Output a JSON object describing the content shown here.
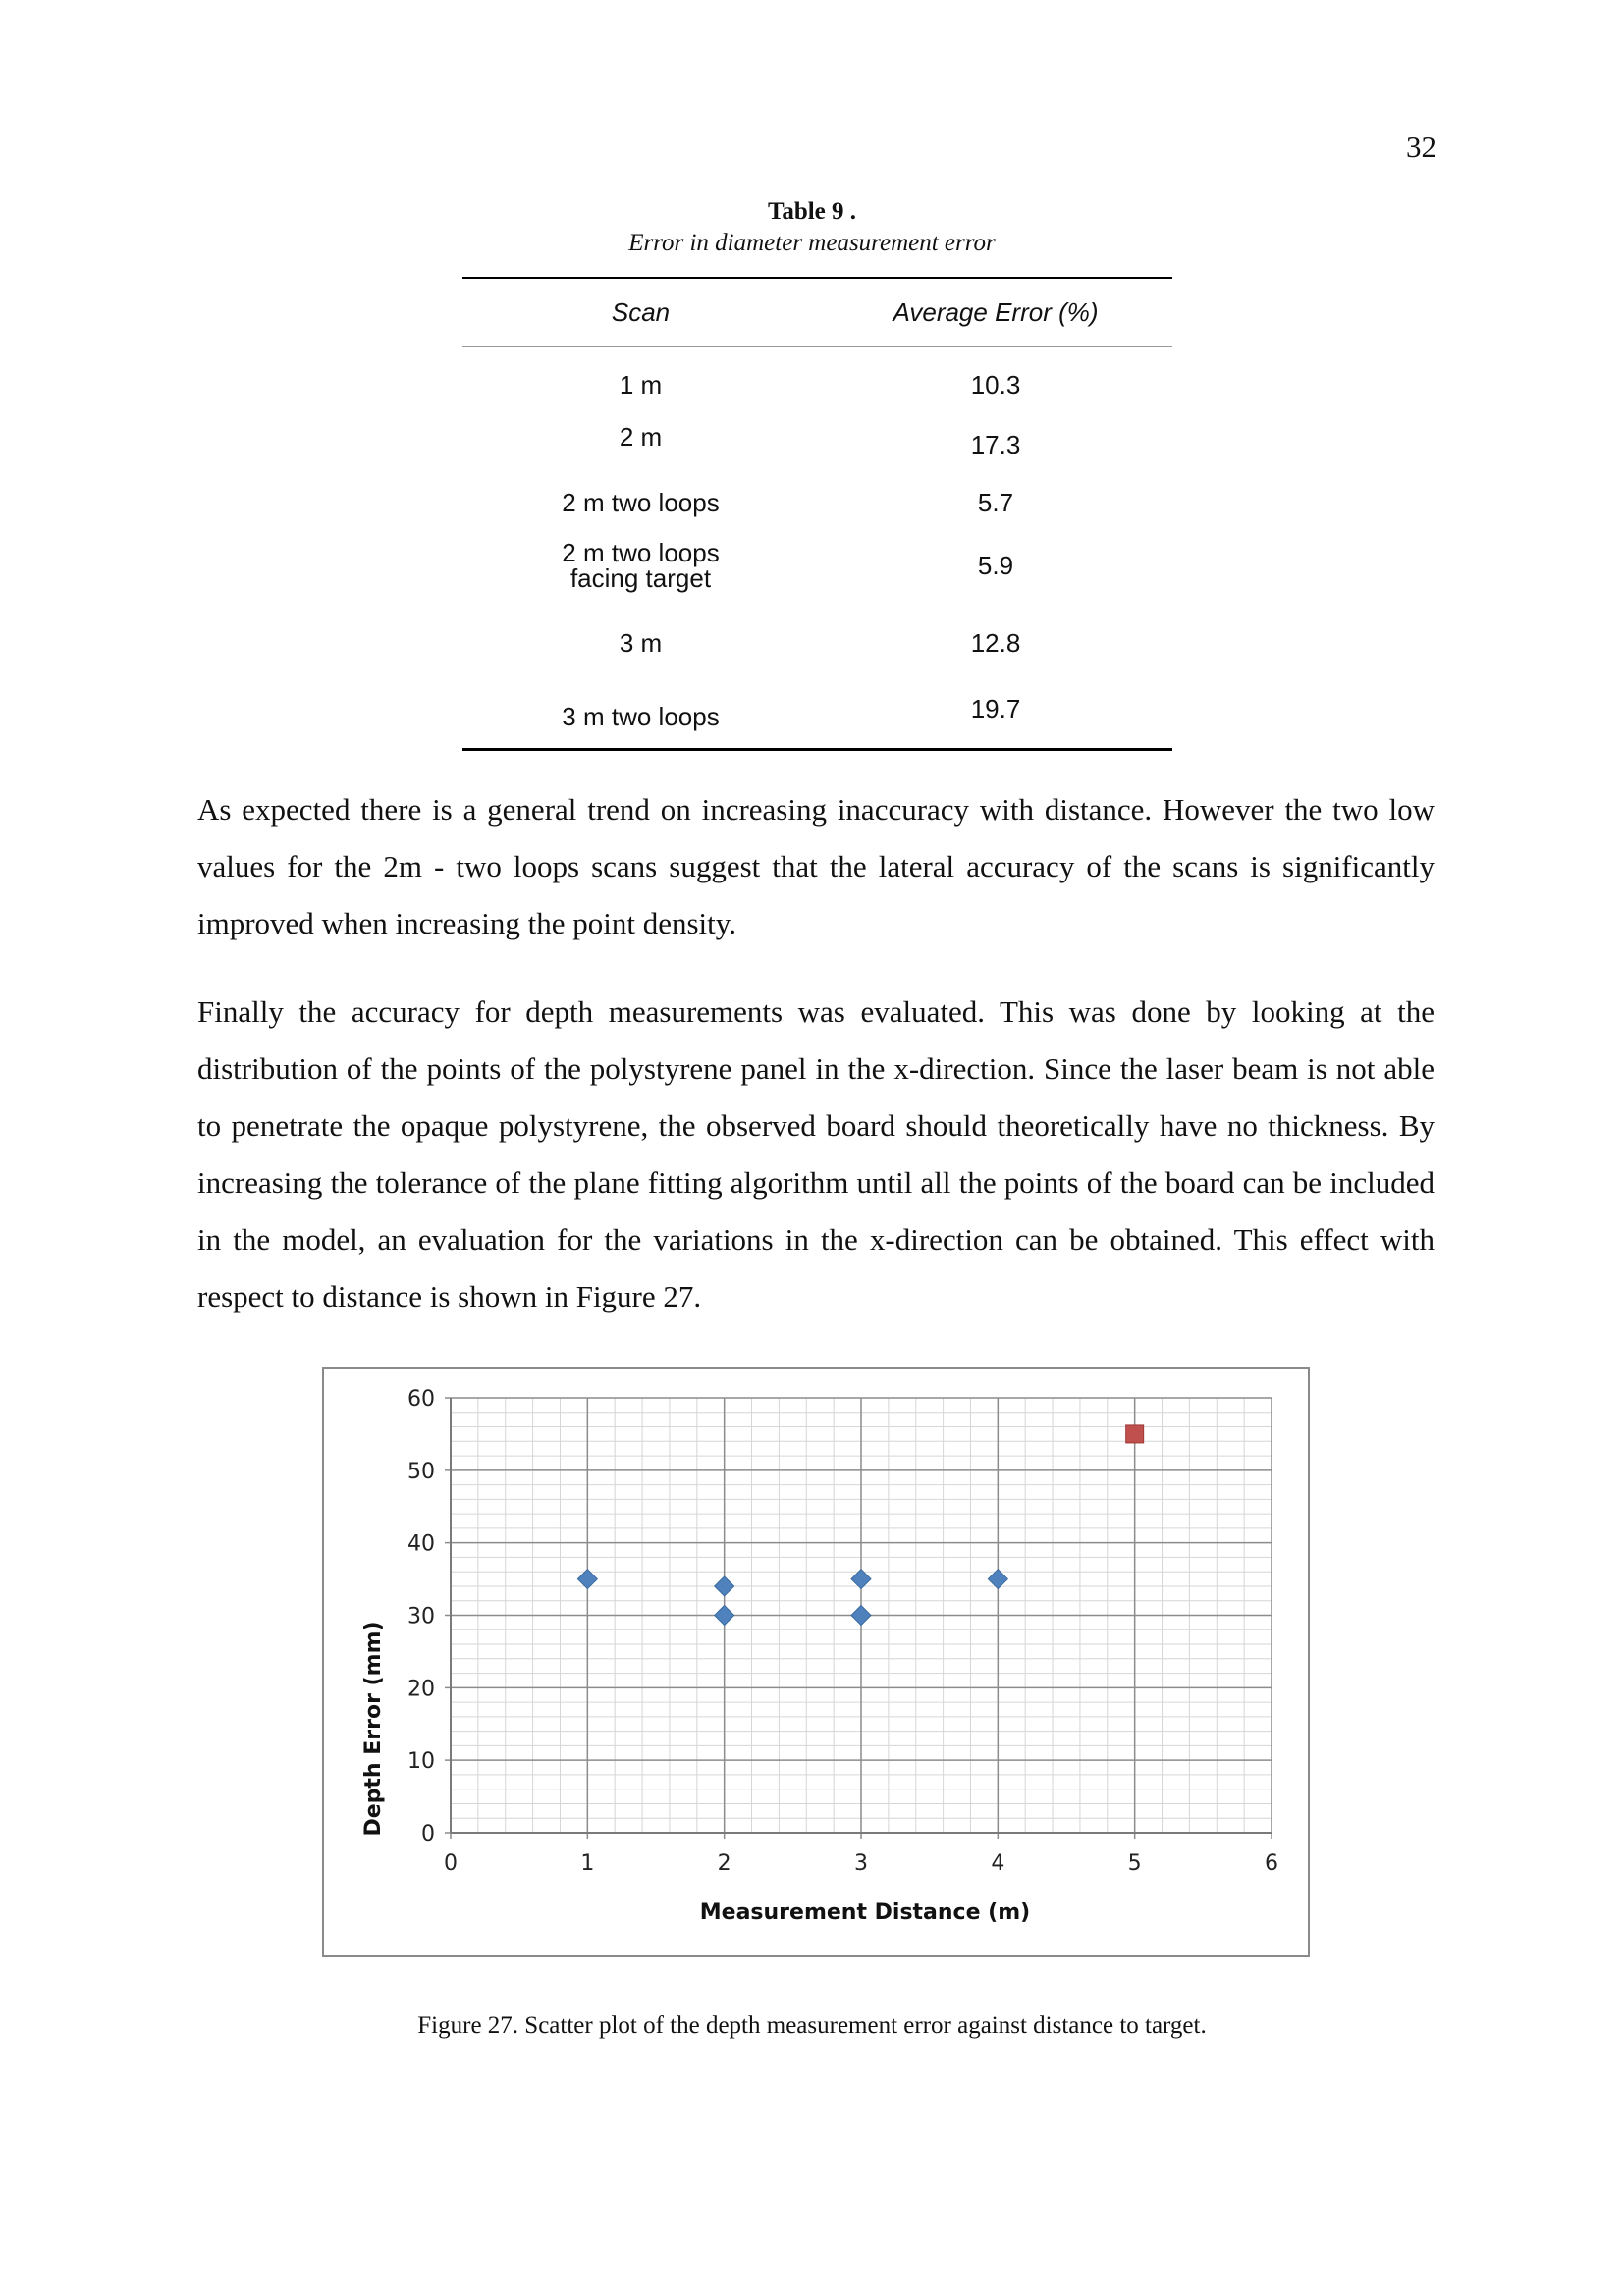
{
  "page": {
    "number": "32"
  },
  "table": {
    "number_label": "Table 9 .",
    "title": "Error in diameter measurement error",
    "headers": [
      "Scan",
      "Average Error (%)"
    ],
    "rows": [
      {
        "scan": "1 m",
        "error": "10.3"
      },
      {
        "scan": "2 m",
        "error": "17.3"
      },
      {
        "scan": "2 m two loops",
        "error": "5.7"
      },
      {
        "scan": "2 m two loops facing target",
        "error": "5.9"
      },
      {
        "scan": "3 m",
        "error": "12.8"
      },
      {
        "scan": "3 m two loops",
        "error": "19.7"
      }
    ]
  },
  "paragraphs": [
    "As expected there is a general trend on increasing inaccuracy with distance. However the two low values for the 2m - two loops scans suggest that the lateral accuracy of the scans is significantly improved when increasing the point density.",
    "Finally the accuracy for depth measurements was evaluated. This was done by looking at the distribution of the points of the polystyrene panel in the x-direction. Since the laser beam is not able to penetrate the opaque polystyrene, the observed board should theoretically have no thickness. By increasing the tolerance of the plane fitting algorithm until all the points of the board can be included in the model, an evaluation for the variations in the x-direction can be obtained. This effect with respect to distance is shown in Figure 27."
  ],
  "chart_data": {
    "type": "scatter",
    "xlabel": "Measurement Distance (m)",
    "ylabel": "Depth Error (mm)",
    "xlim": [
      0,
      6
    ],
    "ylim": [
      0,
      60
    ],
    "xticks": [
      "0",
      "1",
      "2",
      "3",
      "4",
      "5",
      "6"
    ],
    "yticks": [
      "0",
      "10",
      "20",
      "30",
      "40",
      "50",
      "60"
    ],
    "grid": true,
    "minor_grid": true,
    "series": [
      {
        "marker": "diamond",
        "color": "#4f81bd",
        "points": [
          [
            1,
            35
          ],
          [
            2,
            34
          ],
          [
            2,
            30
          ],
          [
            3,
            35
          ],
          [
            3,
            30
          ],
          [
            4,
            35
          ]
        ]
      },
      {
        "marker": "square",
        "color": "#c0504d",
        "points": [
          [
            5,
            55
          ]
        ]
      }
    ]
  },
  "figure": {
    "caption": "Figure 27. Scatter plot of the depth measurement error against distance to target."
  }
}
